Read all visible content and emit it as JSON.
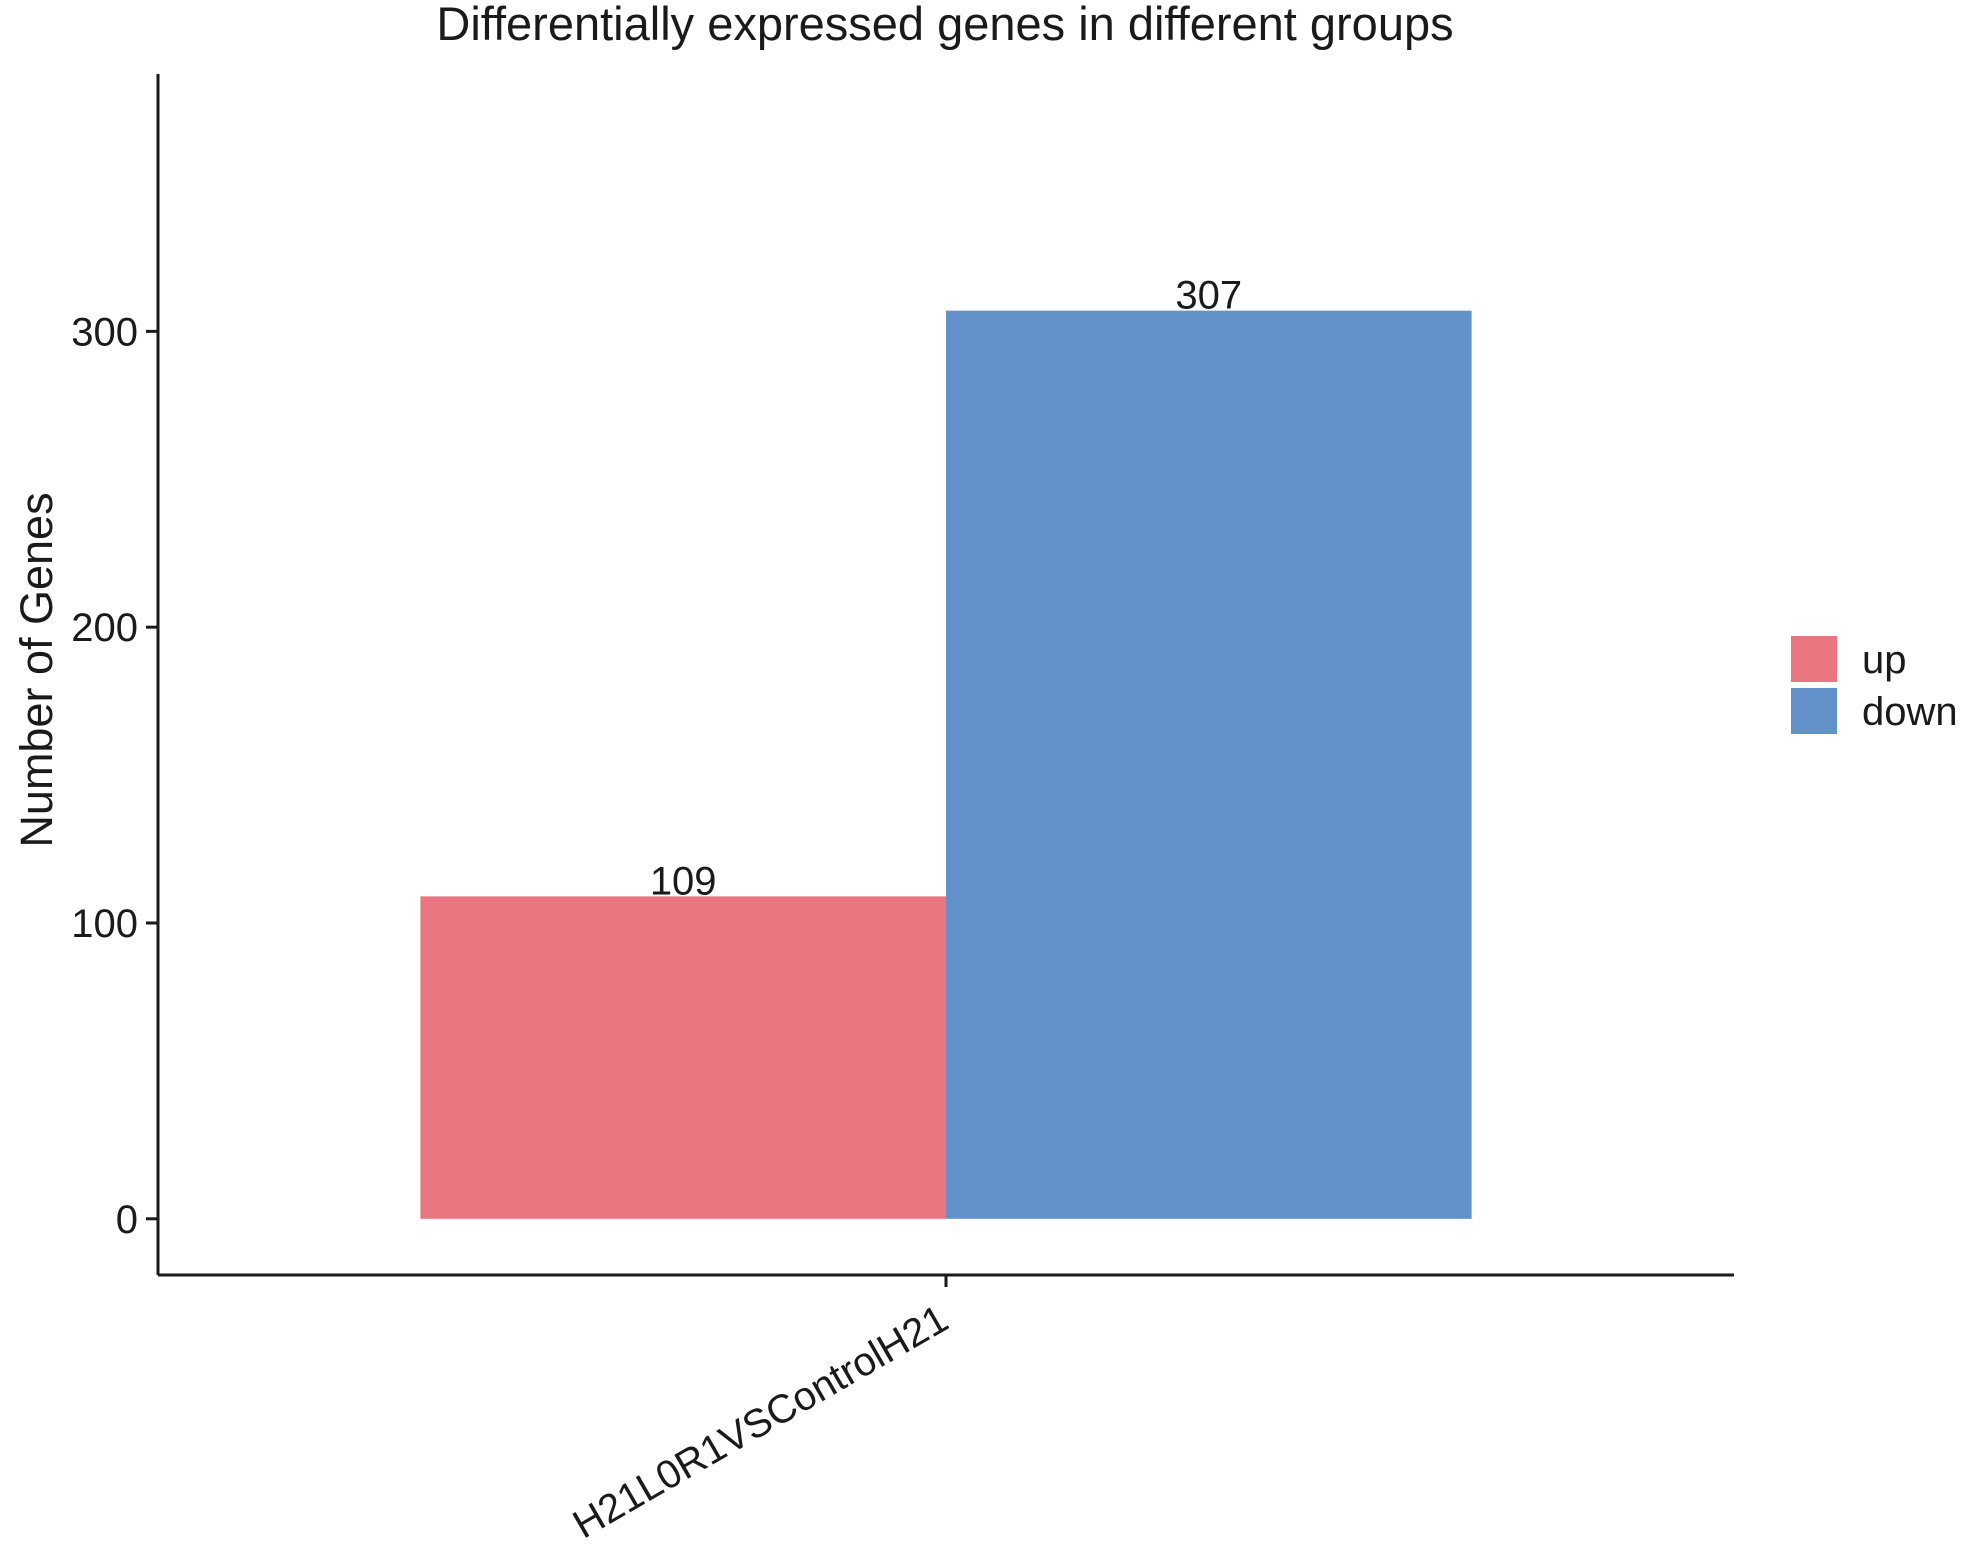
{
  "chart_data": {
    "type": "bar",
    "title": "Differentially expressed genes in different groups",
    "xlabel": "",
    "ylabel": "Number of Genes",
    "categories": [
      "H21L0R1VSControlH21"
    ],
    "series": [
      {
        "name": "up",
        "values": [
          109
        ],
        "color": "#E87580"
      },
      {
        "name": "down",
        "values": [
          307
        ],
        "color": "#6290C8"
      }
    ],
    "ylim": [
      -19,
      387
    ],
    "yticks": [
      0,
      100,
      200,
      300
    ],
    "grid": false,
    "legend": "right",
    "data_labels": true
  }
}
